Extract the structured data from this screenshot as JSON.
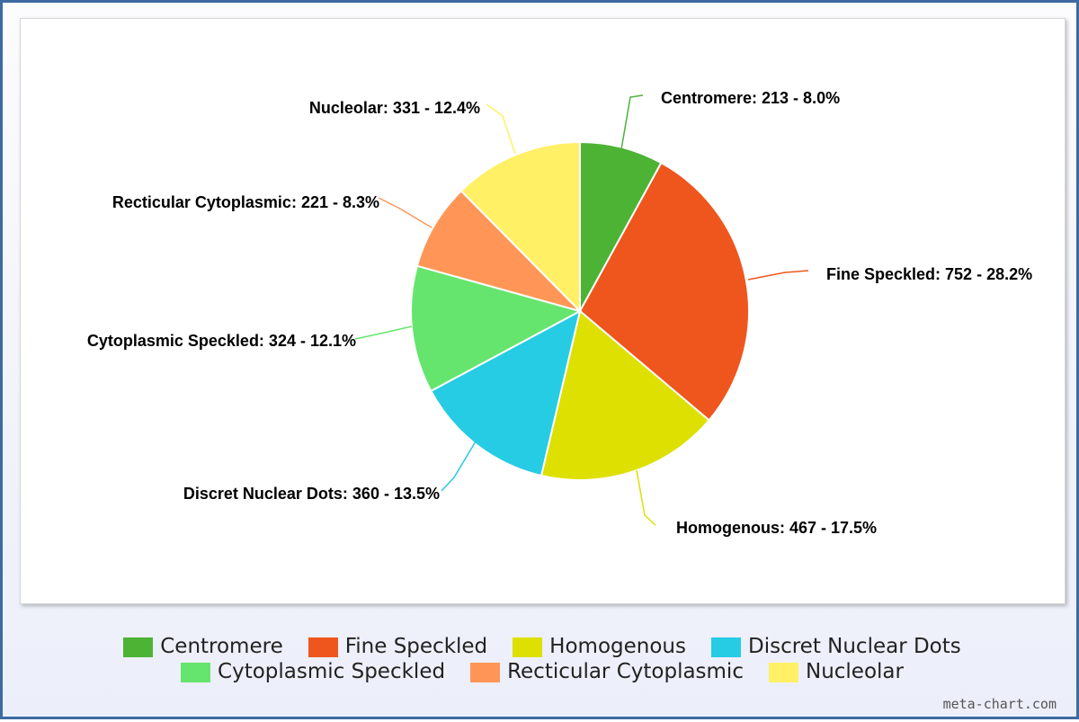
{
  "chart_data": {
    "type": "pie",
    "slices": [
      {
        "name": "Centromere",
        "value": 213,
        "percent": "8.0%",
        "color": "#4db335",
        "label": "Centromere: 213 - 8.0%"
      },
      {
        "name": "Fine Speckled",
        "value": 752,
        "percent": "28.2%",
        "color": "#ee561e",
        "label": "Fine Speckled: 752 - 28.2%"
      },
      {
        "name": "Homogenous",
        "value": 467,
        "percent": "17.5%",
        "color": "#dde000",
        "label": "Homogenous: 467 - 17.5%"
      },
      {
        "name": "Discret Nuclear Dots",
        "value": 360,
        "percent": "13.5%",
        "color": "#26cbe4",
        "label": "Discret Nuclear Dots: 360 - 13.5%"
      },
      {
        "name": "Cytoplasmic Speckled",
        "value": 324,
        "percent": "12.1%",
        "color": "#66e56e",
        "label": "Cytoplasmic Speckled: 324 - 12.1%"
      },
      {
        "name": "Recticular Cytoplasmic",
        "value": 221,
        "percent": "8.3%",
        "color": "#ff9657",
        "label": "Recticular Cytoplasmic: 221 - 8.3%"
      },
      {
        "name": "Nucleolar",
        "value": 331,
        "percent": "12.4%",
        "color": "#fff066",
        "label": "Nucleolar: 331 - 12.4%"
      }
    ],
    "legend_position": "bottom"
  },
  "watermark": "meta-chart.com"
}
